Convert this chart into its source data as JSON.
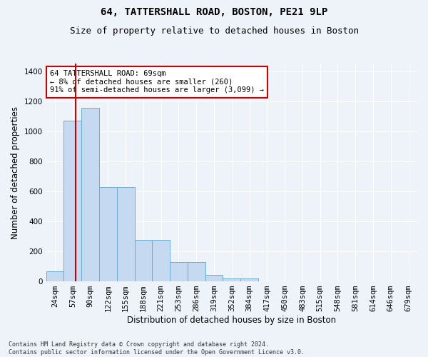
{
  "title": "64, TATTERSHALL ROAD, BOSTON, PE21 9LP",
  "subtitle": "Size of property relative to detached houses in Boston",
  "xlabel": "Distribution of detached houses by size in Boston",
  "ylabel": "Number of detached properties",
  "categories": [
    "24sqm",
    "57sqm",
    "90sqm",
    "122sqm",
    "155sqm",
    "188sqm",
    "221sqm",
    "253sqm",
    "286sqm",
    "319sqm",
    "352sqm",
    "384sqm",
    "417sqm",
    "450sqm",
    "483sqm",
    "515sqm",
    "548sqm",
    "581sqm",
    "614sqm",
    "646sqm",
    "679sqm"
  ],
  "values": [
    65,
    1070,
    1155,
    630,
    630,
    275,
    275,
    130,
    130,
    45,
    20,
    20,
    0,
    0,
    0,
    0,
    0,
    0,
    0,
    0,
    0
  ],
  "bar_color": "#c5d9f0",
  "bar_edge_color": "#6aadd5",
  "red_line_x": 1.15,
  "annotation_text": "64 TATTERSHALL ROAD: 69sqm\n← 8% of detached houses are smaller (260)\n91% of semi-detached houses are larger (3,099) →",
  "annotation_box_color": "#ffffff",
  "annotation_box_edge_color": "#cc0000",
  "ylim": [
    0,
    1450
  ],
  "yticks": [
    0,
    200,
    400,
    600,
    800,
    1000,
    1200,
    1400
  ],
  "footnote": "Contains HM Land Registry data © Crown copyright and database right 2024.\nContains public sector information licensed under the Open Government Licence v3.0.",
  "background_color": "#eef2f9",
  "grid_color": "#ffffff",
  "title_fontsize": 10,
  "subtitle_fontsize": 9,
  "axis_label_fontsize": 8.5,
  "tick_fontsize": 7.5,
  "annot_fontsize": 7.5,
  "footnote_fontsize": 6
}
